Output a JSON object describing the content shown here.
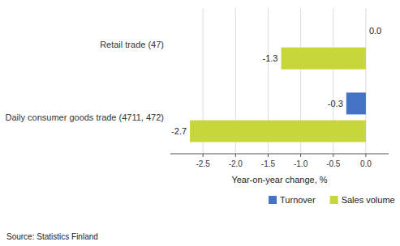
{
  "chart_data": {
    "type": "bar",
    "orientation": "horizontal",
    "categories": [
      "Retail trade (47)",
      "Daily consumer goods trade (4711, 472)"
    ],
    "series": [
      {
        "name": "Turnover",
        "color": "#4472C4",
        "values": [
          0.0,
          -0.3
        ],
        "value_labels": [
          "0.0",
          "-0.3"
        ]
      },
      {
        "name": "Sales volume",
        "color": "#C7D63A",
        "values": [
          -1.3,
          -2.7
        ]
      }
    ],
    "xlabel": "Year-on-year change, %",
    "xlim": [
      -3.0,
      0.35
    ],
    "xticks": [
      -2.5,
      {
        "value": -2.0,
        "label": "-2.0"
      },
      -1.5,
      {
        "value": -1.0,
        "label": "-1.0"
      },
      -0.5,
      {
        "value": 0.0,
        "label": "0.0"
      }
    ],
    "grid": true,
    "legend": "bottom",
    "data_labels": true,
    "source": "Source: Statistics Finland"
  }
}
